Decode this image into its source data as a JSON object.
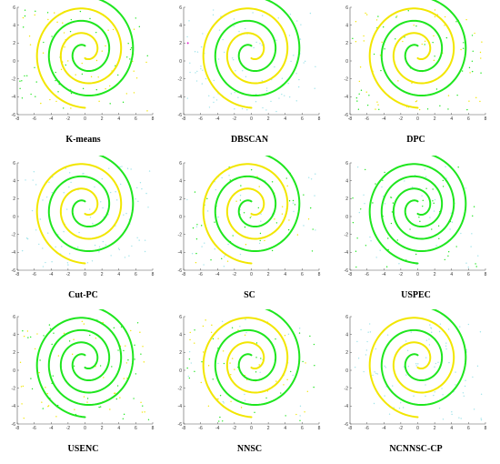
{
  "colors": {
    "yellow": "#f2e600",
    "green": "#1ee61e",
    "cyan": "#9fe3ea",
    "magenta": "#e020c8",
    "axis": "#555555"
  },
  "chart_data": [
    {
      "type": "scatter",
      "title": "K-means",
      "xlim": [
        -8,
        8
      ],
      "ylim": [
        -6,
        6
      ],
      "x_ticks": [
        -8,
        -6,
        -4,
        -2,
        0,
        2,
        4,
        6,
        8
      ],
      "y_ticks": [
        -6,
        -4,
        -2,
        0,
        2,
        4,
        6
      ],
      "arm_a_color": "green",
      "arm_b_color": "yellow",
      "noise_colors": [
        "green",
        "yellow"
      ]
    },
    {
      "type": "scatter",
      "title": "DBSCAN",
      "xlim": [
        -8,
        8
      ],
      "ylim": [
        -6,
        6
      ],
      "x_ticks": [
        -8,
        -6,
        -4,
        -2,
        0,
        2,
        4,
        6,
        8
      ],
      "y_ticks": [
        -6,
        -4,
        -2,
        0,
        2,
        4,
        6
      ],
      "arm_a_color": "green",
      "arm_b_color": "yellow",
      "noise_colors": [
        "cyan"
      ]
    },
    {
      "type": "scatter",
      "title": "DPC",
      "xlim": [
        -8,
        8
      ],
      "ylim": [
        -6,
        6
      ],
      "x_ticks": [
        -8,
        -6,
        -4,
        -2,
        0,
        2,
        4,
        6,
        8
      ],
      "y_ticks": [
        -6,
        -4,
        -2,
        0,
        2,
        4,
        6
      ],
      "arm_a_color": "green",
      "arm_b_color": "yellow",
      "noise_colors": [
        "green",
        "yellow"
      ]
    },
    {
      "type": "scatter",
      "title": "Cut-PC",
      "xlim": [
        -8,
        8
      ],
      "ylim": [
        -6,
        6
      ],
      "x_ticks": [
        -8,
        -6,
        -4,
        -2,
        0,
        2,
        4,
        6,
        8
      ],
      "y_ticks": [
        -6,
        -4,
        -2,
        0,
        2,
        4,
        6
      ],
      "arm_a_color": "green",
      "arm_b_color": "yellow",
      "noise_colors": [
        "cyan"
      ]
    },
    {
      "type": "scatter",
      "title": "SC",
      "xlim": [
        -8,
        8
      ],
      "ylim": [
        -6,
        6
      ],
      "x_ticks": [
        -8,
        -6,
        -4,
        -2,
        0,
        2,
        4,
        6,
        8
      ],
      "y_ticks": [
        -6,
        -4,
        -2,
        0,
        2,
        4,
        6
      ],
      "arm_a_color": "green",
      "arm_b_color": "yellow",
      "noise_colors": [
        "green",
        "yellow",
        "cyan"
      ]
    },
    {
      "type": "scatter",
      "title": "USPEC",
      "xlim": [
        -8,
        8
      ],
      "ylim": [
        -6,
        6
      ],
      "x_ticks": [
        -8,
        -6,
        -4,
        -2,
        0,
        2,
        4,
        6,
        8
      ],
      "y_ticks": [
        -6,
        -4,
        -2,
        0,
        2,
        4,
        6
      ],
      "arm_a_color": "green",
      "arm_b_color": "green",
      "noise_colors": [
        "green",
        "cyan"
      ]
    },
    {
      "type": "scatter",
      "title": "USENC",
      "xlim": [
        -8,
        8
      ],
      "ylim": [
        -6,
        6
      ],
      "x_ticks": [
        -8,
        -6,
        -4,
        -2,
        0,
        2,
        4,
        6,
        8
      ],
      "y_ticks": [
        -6,
        -4,
        -2,
        0,
        2,
        4,
        6
      ],
      "arm_a_color": "green",
      "arm_b_color": "green",
      "noise_colors": [
        "green",
        "yellow"
      ]
    },
    {
      "type": "scatter",
      "title": "NNSC",
      "xlim": [
        -8,
        8
      ],
      "ylim": [
        -6,
        6
      ],
      "x_ticks": [
        -8,
        -6,
        -4,
        -2,
        0,
        2,
        4,
        6,
        8
      ],
      "y_ticks": [
        -6,
        -4,
        -2,
        0,
        2,
        4,
        6
      ],
      "arm_a_color": "green",
      "arm_b_color": "yellow",
      "noise_colors": [
        "green",
        "yellow",
        "cyan"
      ]
    },
    {
      "type": "scatter",
      "title": "NCNNSC-CP",
      "xlim": [
        -8,
        8
      ],
      "ylim": [
        -6,
        6
      ],
      "x_ticks": [
        -8,
        -6,
        -4,
        -2,
        0,
        2,
        4,
        6,
        8
      ],
      "y_ticks": [
        -6,
        -4,
        -2,
        0,
        2,
        4,
        6
      ],
      "arm_a_color": "green",
      "arm_b_color": "yellow",
      "noise_colors": [
        "cyan"
      ]
    }
  ]
}
